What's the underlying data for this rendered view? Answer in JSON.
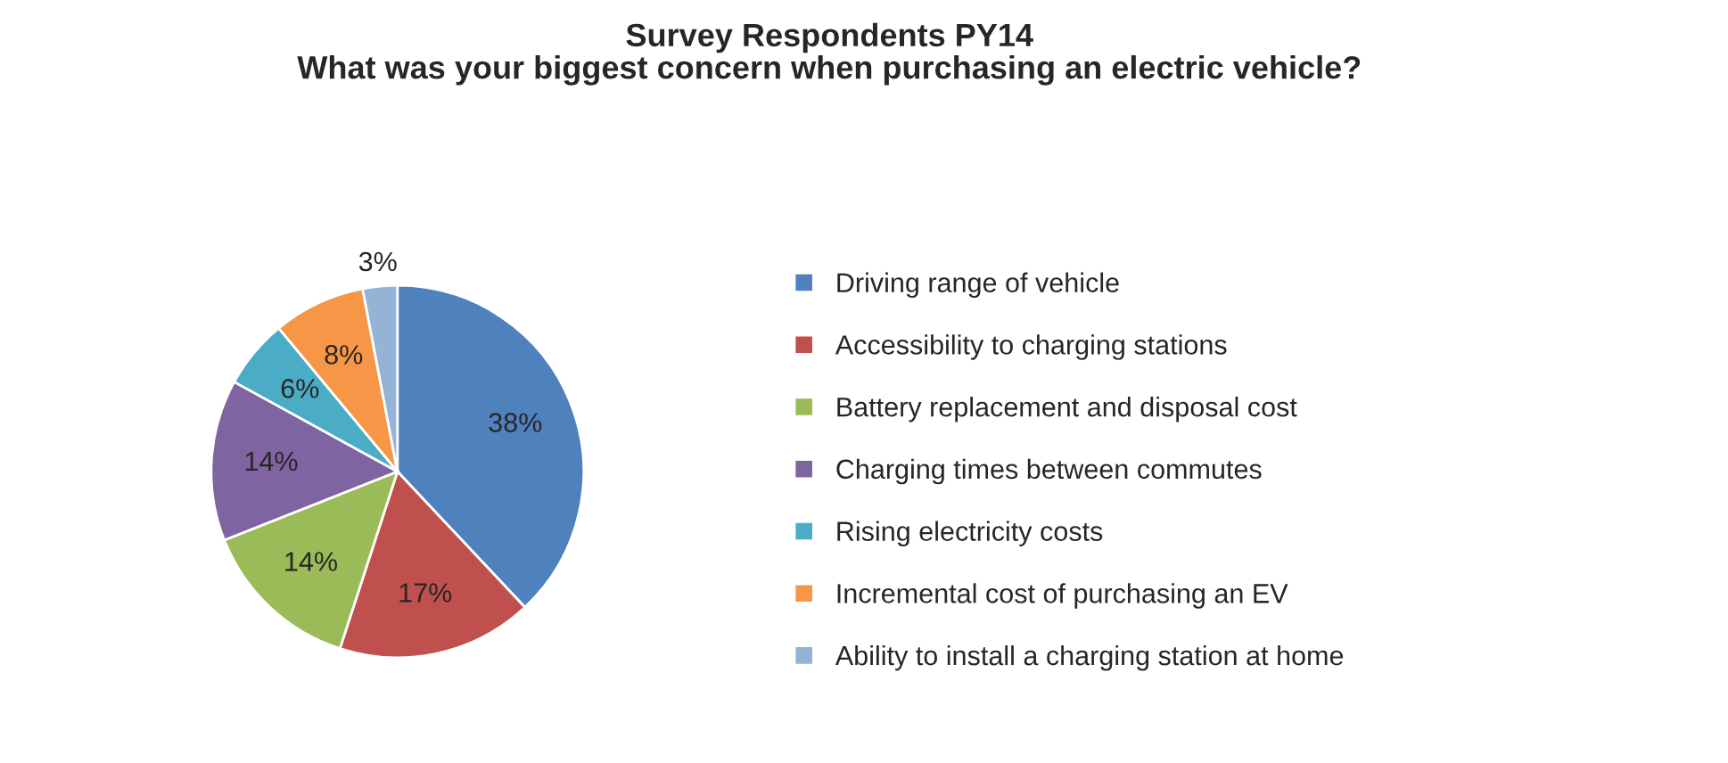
{
  "chart_data": {
    "type": "pie",
    "title": "Survey Respondents PY14\nWhat was your biggest concern when purchasing an electric vehicle?",
    "categories": [
      "Driving range of vehicle",
      "Accessibility to charging stations",
      "Battery replacement and disposal cost",
      "Charging times between commutes",
      "Rising electricity costs",
      "Incremental cost of purchasing an EV",
      "Ability to install a charging station at home"
    ],
    "values": [
      38,
      17,
      14,
      14,
      6,
      8,
      3
    ],
    "colors": [
      "#4f81bd",
      "#c0504d",
      "#9bbb59",
      "#8064a2",
      "#4bacc6",
      "#f79646",
      "#95b3d7"
    ],
    "value_labels": [
      "38%",
      "17%",
      "14%",
      "14%",
      "6%",
      "8%",
      "3%"
    ],
    "legend": "right"
  }
}
